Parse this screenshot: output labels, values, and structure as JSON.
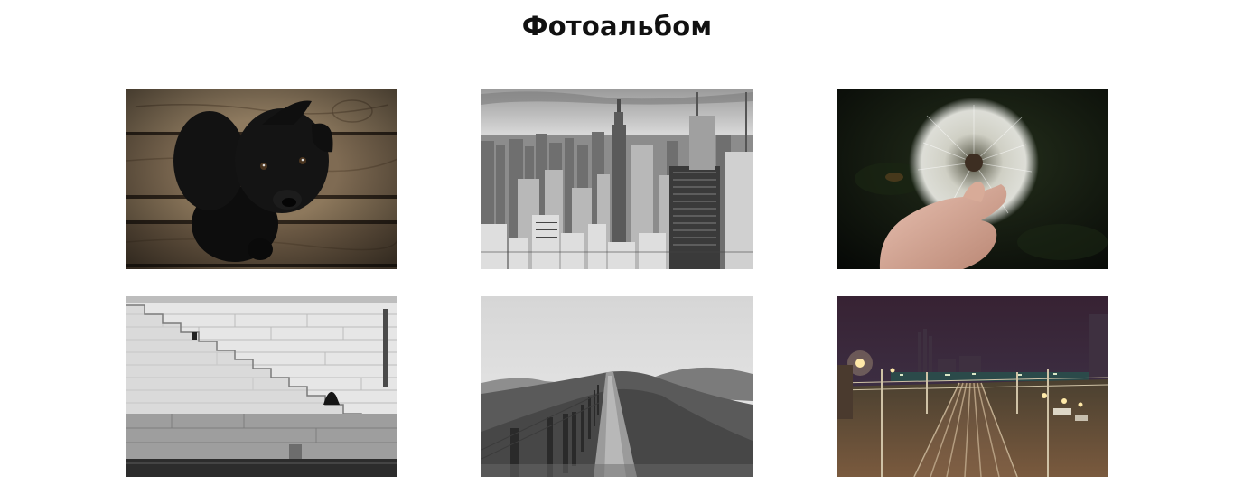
{
  "page": {
    "title": "Фотоальбом"
  },
  "gallery": {
    "photos": [
      {
        "subject": "dog-photo"
      },
      {
        "subject": "city-skyline-photo"
      },
      {
        "subject": "dandelion-photo"
      },
      {
        "subject": "stairs-photo"
      },
      {
        "subject": "hill-path-photo"
      },
      {
        "subject": "railway-photo"
      }
    ]
  },
  "colors": {
    "background": "#ffffff",
    "title": "#111111"
  }
}
